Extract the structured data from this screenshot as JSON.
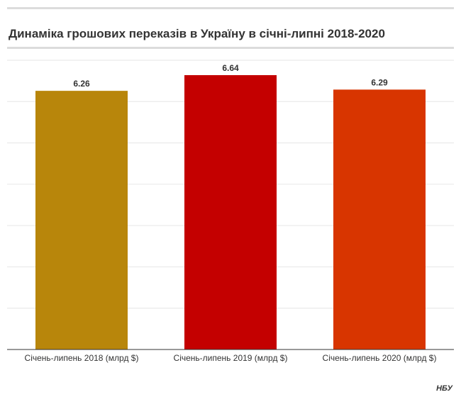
{
  "header": {
    "title": "Динаміка грошових переказів в Україну в січні-липні 2018-2020"
  },
  "footer": {
    "source": "НБУ"
  },
  "colors": {
    "gridline": "#e6e6e6",
    "axis": "#333333",
    "text": "#333333"
  },
  "chart_data": {
    "type": "bar",
    "title": "Динаміка грошових переказів в Україну в січні-липні 2018-2020",
    "categories": [
      "Січень-липень 2018 (млрд $)",
      "Січень-липень 2019 (млрд $)",
      "Січень-липень 2020 (млрд $)"
    ],
    "values": [
      6.26,
      6.64,
      6.29
    ],
    "labels": [
      "6.26",
      "6.64",
      "6.29"
    ],
    "colors": [
      "#b8860b",
      "#c40000",
      "#d83500"
    ],
    "ylim": [
      0,
      7
    ],
    "grid": true,
    "legend": "none",
    "xlabel": "",
    "ylabel": ""
  }
}
